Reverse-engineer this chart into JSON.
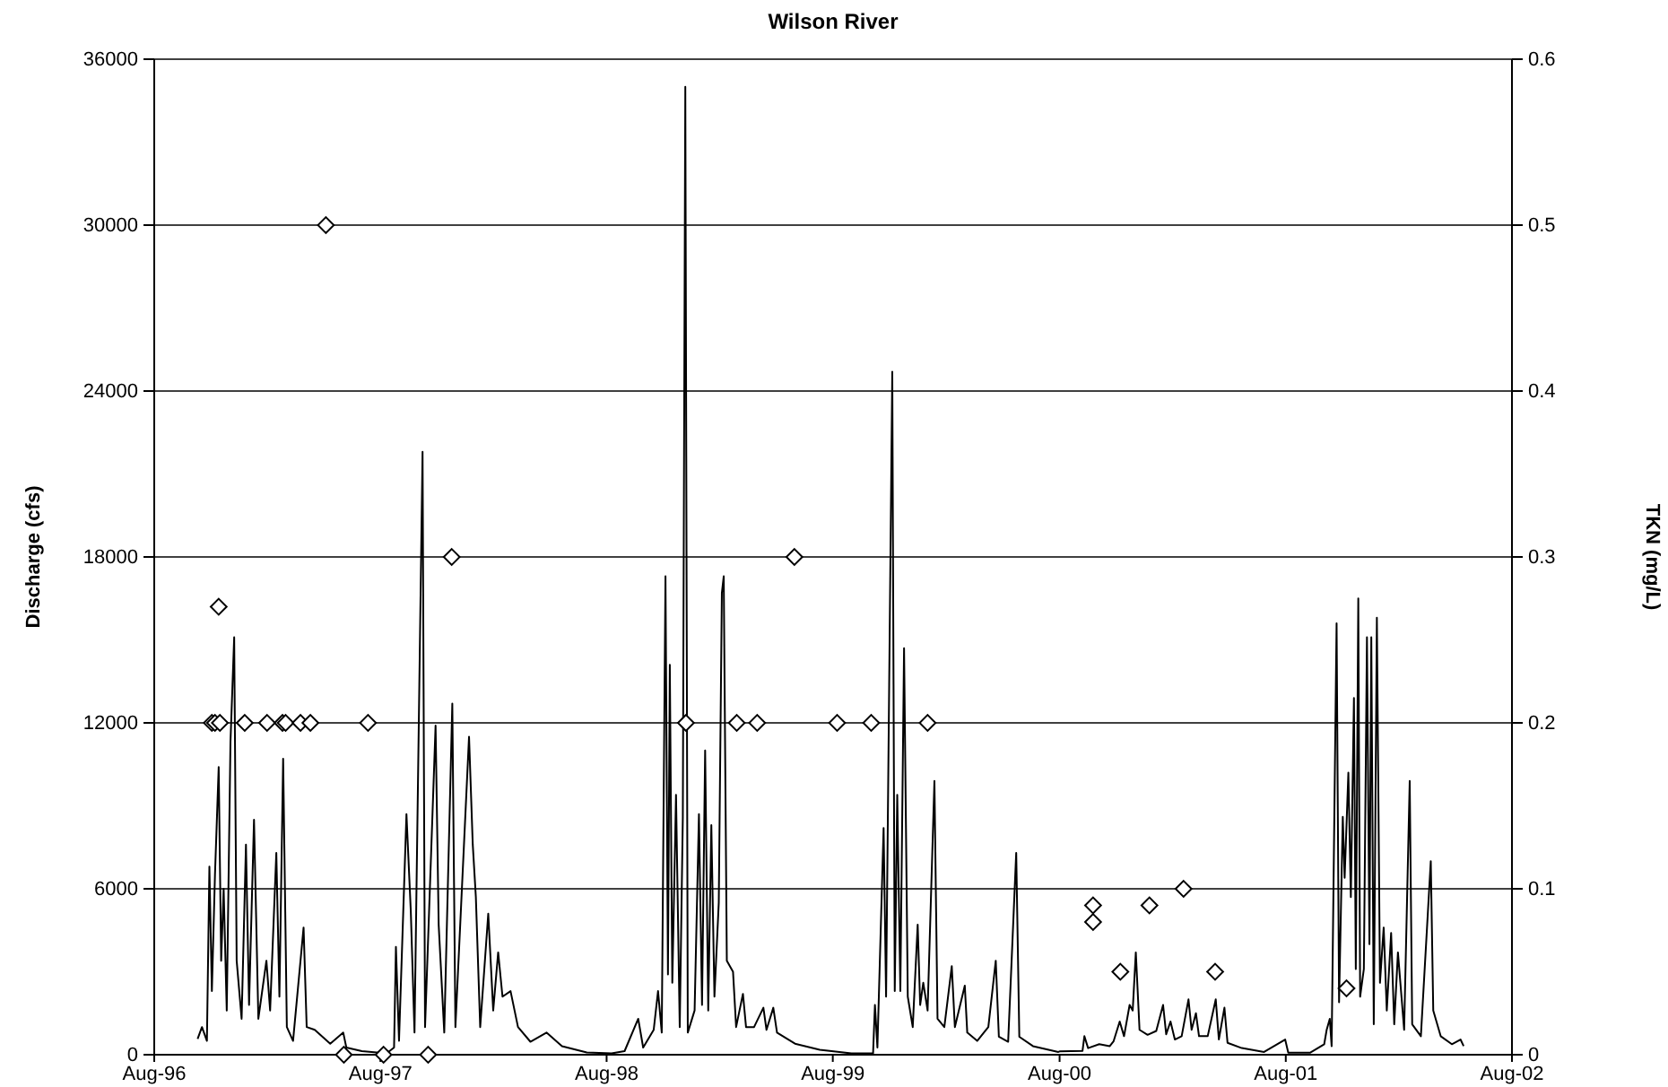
{
  "chart_data": {
    "type": "line",
    "title": "Wilson River",
    "ylabel": "Discharge (cfs)",
    "y2label": "TKN (mg/L)",
    "xlim": [
      "1996-08-01",
      "2002-08-01"
    ],
    "xticks": [
      {
        "value": "1996-08-01",
        "label": "Aug-96"
      },
      {
        "value": "1997-08-01",
        "label": "Aug-97"
      },
      {
        "value": "1998-08-01",
        "label": "Aug-98"
      },
      {
        "value": "1999-08-01",
        "label": "Aug-99"
      },
      {
        "value": "2000-08-01",
        "label": "Aug-00"
      },
      {
        "value": "2001-08-01",
        "label": "Aug-01"
      },
      {
        "value": "2002-08-01",
        "label": "Aug-02"
      }
    ],
    "ylim": [
      0,
      36000
    ],
    "yticks": [
      0,
      6000,
      12000,
      18000,
      24000,
      30000,
      36000
    ],
    "y2lim": [
      0,
      0.6
    ],
    "y2ticks": [
      0,
      0.1,
      0.2,
      0.3,
      0.4,
      0.5,
      0.6
    ],
    "grid": "y",
    "series": [
      {
        "color": "#000000",
        "marker": "none",
        "line_style": "solid",
        "x": [
          "1996-10-10",
          "1996-10-17",
          "1996-10-25",
          "1996-10-29",
          "1996-11-02",
          "1996-11-07",
          "1996-11-13",
          "1996-11-17",
          "1996-11-21",
          "1996-11-26",
          "1996-12-02",
          "1996-12-08",
          "1996-12-12",
          "1996-12-20",
          "1996-12-27",
          "1997-01-01",
          "1997-01-09",
          "1997-01-16",
          "1997-01-29",
          "1997-02-04",
          "1997-02-14",
          "1997-02-19",
          "1997-02-25",
          "1997-03-03",
          "1997-03-13",
          "1997-03-30",
          "1997-04-04",
          "1997-04-17",
          "1997-05-12",
          "1997-06-02",
          "1997-06-07",
          "1997-07-02",
          "1997-08-11",
          "1997-08-23",
          "1997-08-26",
          "1997-08-31",
          "1997-09-12",
          "1997-09-19",
          "1997-09-25",
          "1997-10-08",
          "1997-10-12",
          "1997-10-29",
          "1997-11-03",
          "1997-11-12",
          "1997-11-25",
          "1997-11-30",
          "1997-12-22",
          "1997-12-28",
          "1998-01-02",
          "1998-01-09",
          "1998-01-22",
          "1998-01-30",
          "1998-02-07",
          "1998-02-14",
          "1998-02-27",
          "1998-03-11",
          "1998-03-31",
          "1998-04-26",
          "1998-05-21",
          "1998-06-30",
          "1998-08-09",
          "1998-08-30",
          "1998-09-21",
          "1998-09-29",
          "1998-10-16",
          "1998-10-23",
          "1998-10-29",
          "1998-11-04",
          "1998-11-08",
          "1998-11-11",
          "1998-11-15",
          "1998-11-21",
          "1998-11-27",
          "1998-12-02",
          "1998-12-06",
          "1998-12-10",
          "1998-12-21",
          "1998-12-28",
          "1999-01-02",
          "1999-01-07",
          "1999-01-12",
          "1999-01-17",
          "1999-01-22",
          "1999-01-29",
          "1999-02-03",
          "1999-02-06",
          "1999-02-11",
          "1999-02-21",
          "1999-02-26",
          "1999-03-09",
          "1999-03-14",
          "1999-03-27",
          "1999-04-11",
          "1999-04-16",
          "1999-04-27",
          "1999-05-03",
          "1999-06-01",
          "1999-07-11",
          "1999-08-31",
          "1999-10-05",
          "1999-10-08",
          "1999-10-12",
          "1999-10-22",
          "1999-10-26",
          "1999-11-05",
          "1999-11-09",
          "1999-11-13",
          "1999-11-18",
          "1999-11-24",
          "1999-11-30",
          "1999-12-08",
          "1999-12-16",
          "1999-12-20",
          "1999-12-25",
          "2000-01-01",
          "2000-01-12",
          "2000-01-17",
          "2000-01-28",
          "2000-02-09",
          "2000-02-14",
          "2000-03-01",
          "2000-03-05",
          "2000-03-21",
          "2000-04-08",
          "2000-04-20",
          "2000-04-25",
          "2000-05-10",
          "2000-05-23",
          "2000-05-28",
          "2000-06-19",
          "2000-07-30",
          "2000-08-01",
          "2000-09-07",
          "2000-09-10",
          "2000-09-16",
          "2000-10-04",
          "2000-10-21",
          "2000-10-27",
          "2000-11-06",
          "2000-11-13",
          "2000-11-22",
          "2000-11-27",
          "2000-12-02",
          "2000-12-08",
          "2000-12-21",
          "2001-01-04",
          "2001-01-15",
          "2001-01-20",
          "2001-01-27",
          "2001-02-03",
          "2001-02-14",
          "2001-02-25",
          "2001-03-02",
          "2001-03-09",
          "2001-03-14",
          "2001-03-28",
          "2001-04-10",
          "2001-04-15",
          "2001-04-24",
          "2001-04-29",
          "2001-05-22",
          "2001-06-27",
          "2001-07-31",
          "2001-08-05",
          "2001-09-09",
          "2001-10-02",
          "2001-10-06",
          "2001-10-11",
          "2001-10-14",
          "2001-10-22",
          "2001-10-26",
          "2001-11-01",
          "2001-11-04",
          "2001-11-10",
          "2001-11-14",
          "2001-11-19",
          "2001-11-22",
          "2001-11-26",
          "2001-11-29",
          "2001-12-05",
          "2001-12-10",
          "2001-12-14",
          "2001-12-17",
          "2001-12-21",
          "2001-12-26",
          "2001-12-31",
          "2002-01-06",
          "2002-01-11",
          "2002-01-18",
          "2002-01-23",
          "2002-01-29",
          "2002-02-08",
          "2002-02-17",
          "2002-02-21",
          "2002-03-07",
          "2002-03-23",
          "2002-03-27",
          "2002-04-08",
          "2002-04-26",
          "2002-05-10",
          "2002-05-15"
        ],
        "values": [
          570,
          1000,
          500,
          6800,
          2300,
          6500,
          10400,
          3400,
          6000,
          1600,
          11300,
          15100,
          3400,
          1300,
          7600,
          1800,
          8500,
          1300,
          3400,
          1600,
          7300,
          2100,
          10700,
          1000,
          500,
          4600,
          1000,
          900,
          400,
          800,
          260,
          130,
          50,
          260,
          3900,
          500,
          8700,
          5200,
          800,
          21800,
          1000,
          11900,
          4700,
          800,
          12700,
          1000,
          11500,
          7600,
          5700,
          1000,
          5100,
          1600,
          3700,
          2100,
          2300,
          1000,
          470,
          800,
          310,
          80,
          50,
          130,
          1300,
          260,
          900,
          2300,
          800,
          17300,
          2900,
          14100,
          2600,
          9400,
          1000,
          8600,
          35000,
          800,
          1600,
          8700,
          1800,
          11000,
          1600,
          8300,
          2100,
          5500,
          16700,
          17300,
          3400,
          3000,
          1000,
          2200,
          1000,
          1000,
          1700,
          900,
          1700,
          800,
          400,
          180,
          50,
          50,
          1800,
          260,
          8200,
          2100,
          24700,
          2300,
          9400,
          2300,
          14700,
          2100,
          1000,
          4700,
          1800,
          2600,
          1600,
          9900,
          1300,
          1000,
          3200,
          1000,
          2500,
          800,
          500,
          1000,
          3400,
          650,
          470,
          7300,
          650,
          310,
          100,
          120,
          140,
          670,
          240,
          380,
          310,
          480,
          1200,
          670,
          1800,
          1600,
          3700,
          900,
          720,
          860,
          1800,
          740,
          1200,
          550,
          670,
          2000,
          900,
          1500,
          670,
          670,
          2000,
          550,
          1700,
          430,
          240,
          100,
          550,
          70,
          70,
          380,
          900,
          1300,
          310,
          15600,
          1900,
          8600,
          6400,
          10200,
          5700,
          12900,
          3100,
          16500,
          2100,
          3100,
          15100,
          4000,
          15100,
          1100,
          15800,
          2600,
          4600,
          1600,
          4400,
          1100,
          3700,
          900,
          9900,
          1100,
          670,
          7000,
          1600,
          670,
          380,
          550,
          310
        ]
      },
      {
        "type": "scatter",
        "axis": "y2",
        "color": "#000000",
        "marker": "diamond",
        "x": [
          "1996-11-02",
          "1996-11-07",
          "1996-11-13",
          "1996-11-15",
          "1996-12-25",
          "1997-01-30",
          "1997-02-24",
          "1997-03-01",
          "1997-03-25",
          "1997-04-10",
          "1997-05-05",
          "1997-06-03",
          "1997-07-12",
          "1997-08-06",
          "1997-10-17",
          "1997-11-24",
          "1998-12-07",
          "1999-02-27",
          "1999-04-01",
          "1999-05-31",
          "1999-08-08",
          "1999-10-02",
          "2000-01-01",
          "2000-09-24",
          "2000-09-24",
          "2000-11-07",
          "2000-12-24",
          "2001-02-17",
          "2001-04-09",
          "2001-11-07"
        ],
        "values": [
          0.2,
          0.2,
          0.27,
          0.2,
          0.2,
          0.2,
          0.2,
          0.2,
          0.2,
          0.2,
          0.5,
          0,
          0.2,
          0,
          0,
          0.3,
          0.2,
          0.2,
          0.2,
          0.3,
          0.2,
          0.2,
          0.2,
          0.09,
          0.08,
          0.05,
          0.09,
          0.1,
          0.05,
          0.04
        ]
      }
    ]
  }
}
